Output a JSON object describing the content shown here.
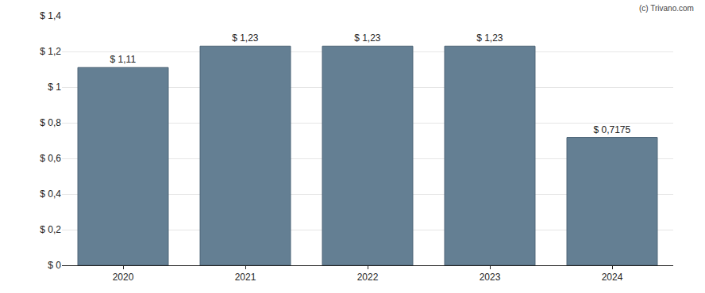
{
  "chart_data": {
    "type": "bar",
    "categories": [
      "2020",
      "2021",
      "2022",
      "2023",
      "2024"
    ],
    "values": [
      1.11,
      1.23,
      1.23,
      1.23,
      0.7175
    ],
    "value_labels": [
      "$ 1,11",
      "$ 1,23",
      "$ 1,23",
      "$ 1,23",
      "$ 0,7175"
    ],
    "data_labels": true,
    "color": "#647f93",
    "ylim": [
      0,
      1.4
    ],
    "yticks": [
      {
        "value": 0,
        "label": "$ 0"
      },
      {
        "value": 0.2,
        "label": "$ 0,2"
      },
      {
        "value": 0.4,
        "label": "$ 0,4"
      },
      {
        "value": 0.6,
        "label": "$ 0,6"
      },
      {
        "value": 0.8,
        "label": "$ 0,8"
      },
      {
        "value": 1,
        "label": "$ 1"
      },
      {
        "value": 1.2,
        "label": "$ 1,2"
      },
      {
        "value": 1.4,
        "label": "$ 1,4"
      }
    ],
    "grid": true,
    "annotations": [
      "(c) Trivano.com"
    ]
  }
}
